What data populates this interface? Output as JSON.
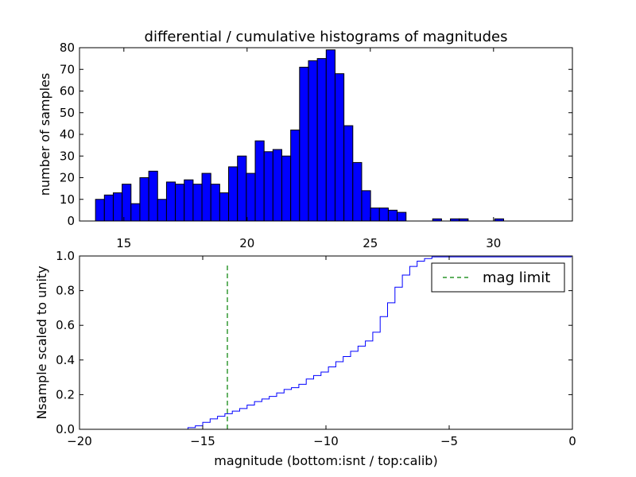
{
  "chart_data": [
    {
      "type": "bar",
      "title": "differential / cumulative histograms of magnitudes",
      "xlabel": "",
      "ylabel": "number of samples",
      "xlim": [
        13.2,
        33.2
      ],
      "ylim": [
        0,
        80
      ],
      "xticks": [
        15,
        20,
        25,
        30
      ],
      "yticks": [
        0,
        10,
        20,
        30,
        40,
        50,
        60,
        70,
        80
      ],
      "bar_color": "#0000ff",
      "bin_width": 0.36,
      "bins_left": [
        13.85,
        14.21,
        14.57,
        14.93,
        15.29,
        15.65,
        16.01,
        16.37,
        16.73,
        17.09,
        17.45,
        17.81,
        18.17,
        18.53,
        18.89,
        19.25,
        19.61,
        19.97,
        20.33,
        20.69,
        21.05,
        21.41,
        21.77,
        22.13,
        22.49,
        22.85,
        23.21,
        23.57,
        23.93,
        24.29,
        24.65,
        25.01,
        25.37,
        25.73,
        26.09,
        27.53,
        28.25,
        28.61,
        30.05
      ],
      "values": [
        10,
        12,
        13,
        17,
        8,
        20,
        23,
        10,
        18,
        17,
        19,
        17,
        22,
        17,
        13,
        25,
        30,
        22,
        37,
        32,
        33,
        30,
        42,
        71,
        74,
        75,
        79,
        68,
        44,
        27,
        14,
        6,
        6,
        5,
        4,
        1,
        1,
        1,
        1
      ]
    },
    {
      "type": "line",
      "title": "",
      "xlabel": "magnitude (bottom:isnt / top:calib)",
      "ylabel": "Nsample scaled to unity",
      "xlim": [
        -20,
        0
      ],
      "ylim": [
        0.0,
        1.0
      ],
      "xticks": [
        -20,
        -15,
        -10,
        -5,
        0
      ],
      "xticklabels": [
        "−20",
        "−15",
        "−10",
        "−5",
        "0"
      ],
      "yticks": [
        0.0,
        0.2,
        0.4,
        0.6,
        0.8,
        1.0
      ],
      "yticklabels": [
        "0.0",
        "0.2",
        "0.4",
        "0.6",
        "0.8",
        "1.0"
      ],
      "series": [
        {
          "name": "",
          "style": "steps",
          "color": "#0000ff",
          "x": [
            -20,
            -15.9,
            -15.6,
            -15.3,
            -15.0,
            -14.7,
            -14.4,
            -14.1,
            -13.8,
            -13.5,
            -13.2,
            -12.9,
            -12.6,
            -12.3,
            -12.0,
            -11.7,
            -11.4,
            -11.1,
            -10.8,
            -10.5,
            -10.2,
            -9.9,
            -9.6,
            -9.3,
            -9.0,
            -8.7,
            -8.4,
            -8.1,
            -7.8,
            -7.5,
            -7.2,
            -6.9,
            -6.6,
            -6.3,
            -6.0,
            -5.7,
            -0.05,
            0
          ],
          "y": [
            0.0,
            0.0,
            0.01,
            0.02,
            0.04,
            0.06,
            0.075,
            0.09,
            0.105,
            0.12,
            0.14,
            0.16,
            0.175,
            0.19,
            0.21,
            0.23,
            0.24,
            0.26,
            0.29,
            0.31,
            0.33,
            0.36,
            0.39,
            0.42,
            0.45,
            0.48,
            0.51,
            0.56,
            0.65,
            0.73,
            0.82,
            0.89,
            0.94,
            0.97,
            0.985,
            0.995,
            1.0,
            1.0
          ]
        },
        {
          "name": "mag limit",
          "style": "vline-dashed",
          "color": "#008000",
          "x": [
            -14.0,
            -14.0
          ],
          "y": [
            0.0,
            0.96
          ]
        }
      ],
      "legend": {
        "placement": "top-right",
        "entries": [
          "mag limit"
        ]
      }
    }
  ]
}
